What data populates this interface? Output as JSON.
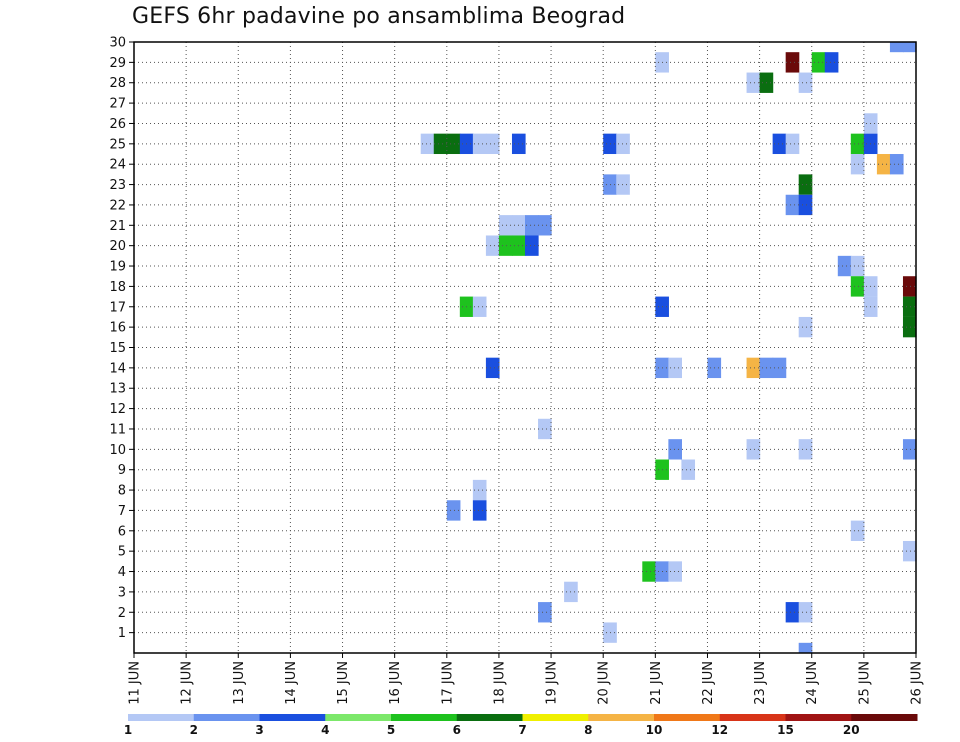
{
  "chart_data": {
    "type": "heatmap",
    "title": "GEFS 6hr padavine po ansamblima Beograd",
    "y_ticks": [
      "1",
      "2",
      "3",
      "4",
      "5",
      "6",
      "7",
      "8",
      "9",
      "10",
      "11",
      "12",
      "13",
      "14",
      "15",
      "16",
      "17",
      "18",
      "19",
      "20",
      "21",
      "22",
      "23",
      "24",
      "25",
      "26",
      "27",
      "28",
      "29",
      "30"
    ],
    "x_ticks": [
      "11 JUN",
      "12 JUN",
      "13 JUN",
      "14 JUN",
      "15 JUN",
      "16 JUN",
      "17 JUN",
      "18 JUN",
      "19 JUN",
      "20 JUN",
      "21 JUN",
      "22 JUN",
      "23 JUN",
      "24 JUN",
      "25 JUN",
      "26 JUN"
    ],
    "x_start": "11 JUN",
    "x_step_hours": 6,
    "ylim": [
      0,
      30
    ],
    "grid": true,
    "colorbar": {
      "placement": "bottom",
      "labels": [
        "1",
        "2",
        "3",
        "4",
        "5",
        "6",
        "7",
        "8",
        "10",
        "12",
        "15",
        "20"
      ],
      "colors": [
        "#b4c8f5",
        "#6a93ef",
        "#1a4fdf",
        "#7ce86a",
        "#1ec21e",
        "#0a6e10",
        "#f0f000",
        "#f5b445",
        "#f07818",
        "#d83418",
        "#a01414",
        "#6a0a0a"
      ]
    },
    "cells": [
      {
        "t": 58,
        "m": 30,
        "v": 2
      },
      {
        "t": 59,
        "m": 30,
        "v": 2
      },
      {
        "t": 40,
        "m": 29,
        "v": 1
      },
      {
        "t": 50,
        "m": 29,
        "v": 20
      },
      {
        "t": 52,
        "m": 29,
        "v": 5
      },
      {
        "t": 53,
        "m": 29,
        "v": 3
      },
      {
        "t": 47,
        "m": 28,
        "v": 1
      },
      {
        "t": 48,
        "m": 28,
        "v": 6
      },
      {
        "t": 51,
        "m": 28,
        "v": 1
      },
      {
        "t": 56,
        "m": 26,
        "v": 1
      },
      {
        "t": 22,
        "m": 25,
        "v": 1
      },
      {
        "t": 23,
        "m": 25,
        "v": 6
      },
      {
        "t": 24,
        "m": 25,
        "v": 6
      },
      {
        "t": 25,
        "m": 25,
        "v": 3
      },
      {
        "t": 26,
        "m": 25,
        "v": 1
      },
      {
        "t": 27,
        "m": 25,
        "v": 1
      },
      {
        "t": 29,
        "m": 25,
        "v": 3
      },
      {
        "t": 36,
        "m": 25,
        "v": 3
      },
      {
        "t": 37,
        "m": 25,
        "v": 1
      },
      {
        "t": 49,
        "m": 25,
        "v": 3
      },
      {
        "t": 50,
        "m": 25,
        "v": 1
      },
      {
        "t": 55,
        "m": 25,
        "v": 5
      },
      {
        "t": 56,
        "m": 25,
        "v": 3
      },
      {
        "t": 55,
        "m": 24,
        "v": 1
      },
      {
        "t": 57,
        "m": 24,
        "v": 8
      },
      {
        "t": 58,
        "m": 24,
        "v": 2
      },
      {
        "t": 36,
        "m": 23,
        "v": 2
      },
      {
        "t": 37,
        "m": 23,
        "v": 1
      },
      {
        "t": 51,
        "m": 23,
        "v": 6
      },
      {
        "t": 50,
        "m": 22,
        "v": 2
      },
      {
        "t": 51,
        "m": 22,
        "v": 3
      },
      {
        "t": 28,
        "m": 21,
        "v": 1
      },
      {
        "t": 29,
        "m": 21,
        "v": 1
      },
      {
        "t": 30,
        "m": 21,
        "v": 2
      },
      {
        "t": 31,
        "m": 21,
        "v": 2
      },
      {
        "t": 27,
        "m": 20,
        "v": 1
      },
      {
        "t": 28,
        "m": 20,
        "v": 5
      },
      {
        "t": 29,
        "m": 20,
        "v": 5
      },
      {
        "t": 30,
        "m": 20,
        "v": 3
      },
      {
        "t": 54,
        "m": 19,
        "v": 2
      },
      {
        "t": 55,
        "m": 19,
        "v": 1
      },
      {
        "t": 55,
        "m": 18,
        "v": 5
      },
      {
        "t": 56,
        "m": 18,
        "v": 1
      },
      {
        "t": 59,
        "m": 18,
        "v": 20
      },
      {
        "t": 25,
        "m": 17,
        "v": 5
      },
      {
        "t": 26,
        "m": 17,
        "v": 1
      },
      {
        "t": 40,
        "m": 17,
        "v": 3
      },
      {
        "t": 56,
        "m": 17,
        "v": 1
      },
      {
        "t": 59,
        "m": 17,
        "v": 6
      },
      {
        "t": 51,
        "m": 16,
        "v": 1
      },
      {
        "t": 59,
        "m": 16,
        "v": 6
      },
      {
        "t": 27,
        "m": 14,
        "v": 3
      },
      {
        "t": 40,
        "m": 14,
        "v": 2
      },
      {
        "t": 41,
        "m": 14,
        "v": 1
      },
      {
        "t": 44,
        "m": 14,
        "v": 2
      },
      {
        "t": 47,
        "m": 14,
        "v": 8
      },
      {
        "t": 48,
        "m": 14,
        "v": 2
      },
      {
        "t": 49,
        "m": 14,
        "v": 2
      },
      {
        "t": 31,
        "m": 11,
        "v": 1
      },
      {
        "t": 41,
        "m": 10,
        "v": 2
      },
      {
        "t": 47,
        "m": 10,
        "v": 1
      },
      {
        "t": 51,
        "m": 10,
        "v": 1
      },
      {
        "t": 59,
        "m": 10,
        "v": 2
      },
      {
        "t": 40,
        "m": 9,
        "v": 5
      },
      {
        "t": 42,
        "m": 9,
        "v": 1
      },
      {
        "t": 26,
        "m": 8,
        "v": 1
      },
      {
        "t": 24,
        "m": 7,
        "v": 2
      },
      {
        "t": 26,
        "m": 7,
        "v": 3
      },
      {
        "t": 55,
        "m": 6,
        "v": 1
      },
      {
        "t": 59,
        "m": 5,
        "v": 1
      },
      {
        "t": 39,
        "m": 4,
        "v": 5
      },
      {
        "t": 40,
        "m": 4,
        "v": 2
      },
      {
        "t": 41,
        "m": 4,
        "v": 1
      },
      {
        "t": 33,
        "m": 3,
        "v": 1
      },
      {
        "t": 31,
        "m": 2,
        "v": 2
      },
      {
        "t": 50,
        "m": 2,
        "v": 3
      },
      {
        "t": 51,
        "m": 2,
        "v": 1
      },
      {
        "t": 36,
        "m": 1,
        "v": 1
      },
      {
        "t": 51,
        "m": 0,
        "v": 2
      }
    ]
  }
}
